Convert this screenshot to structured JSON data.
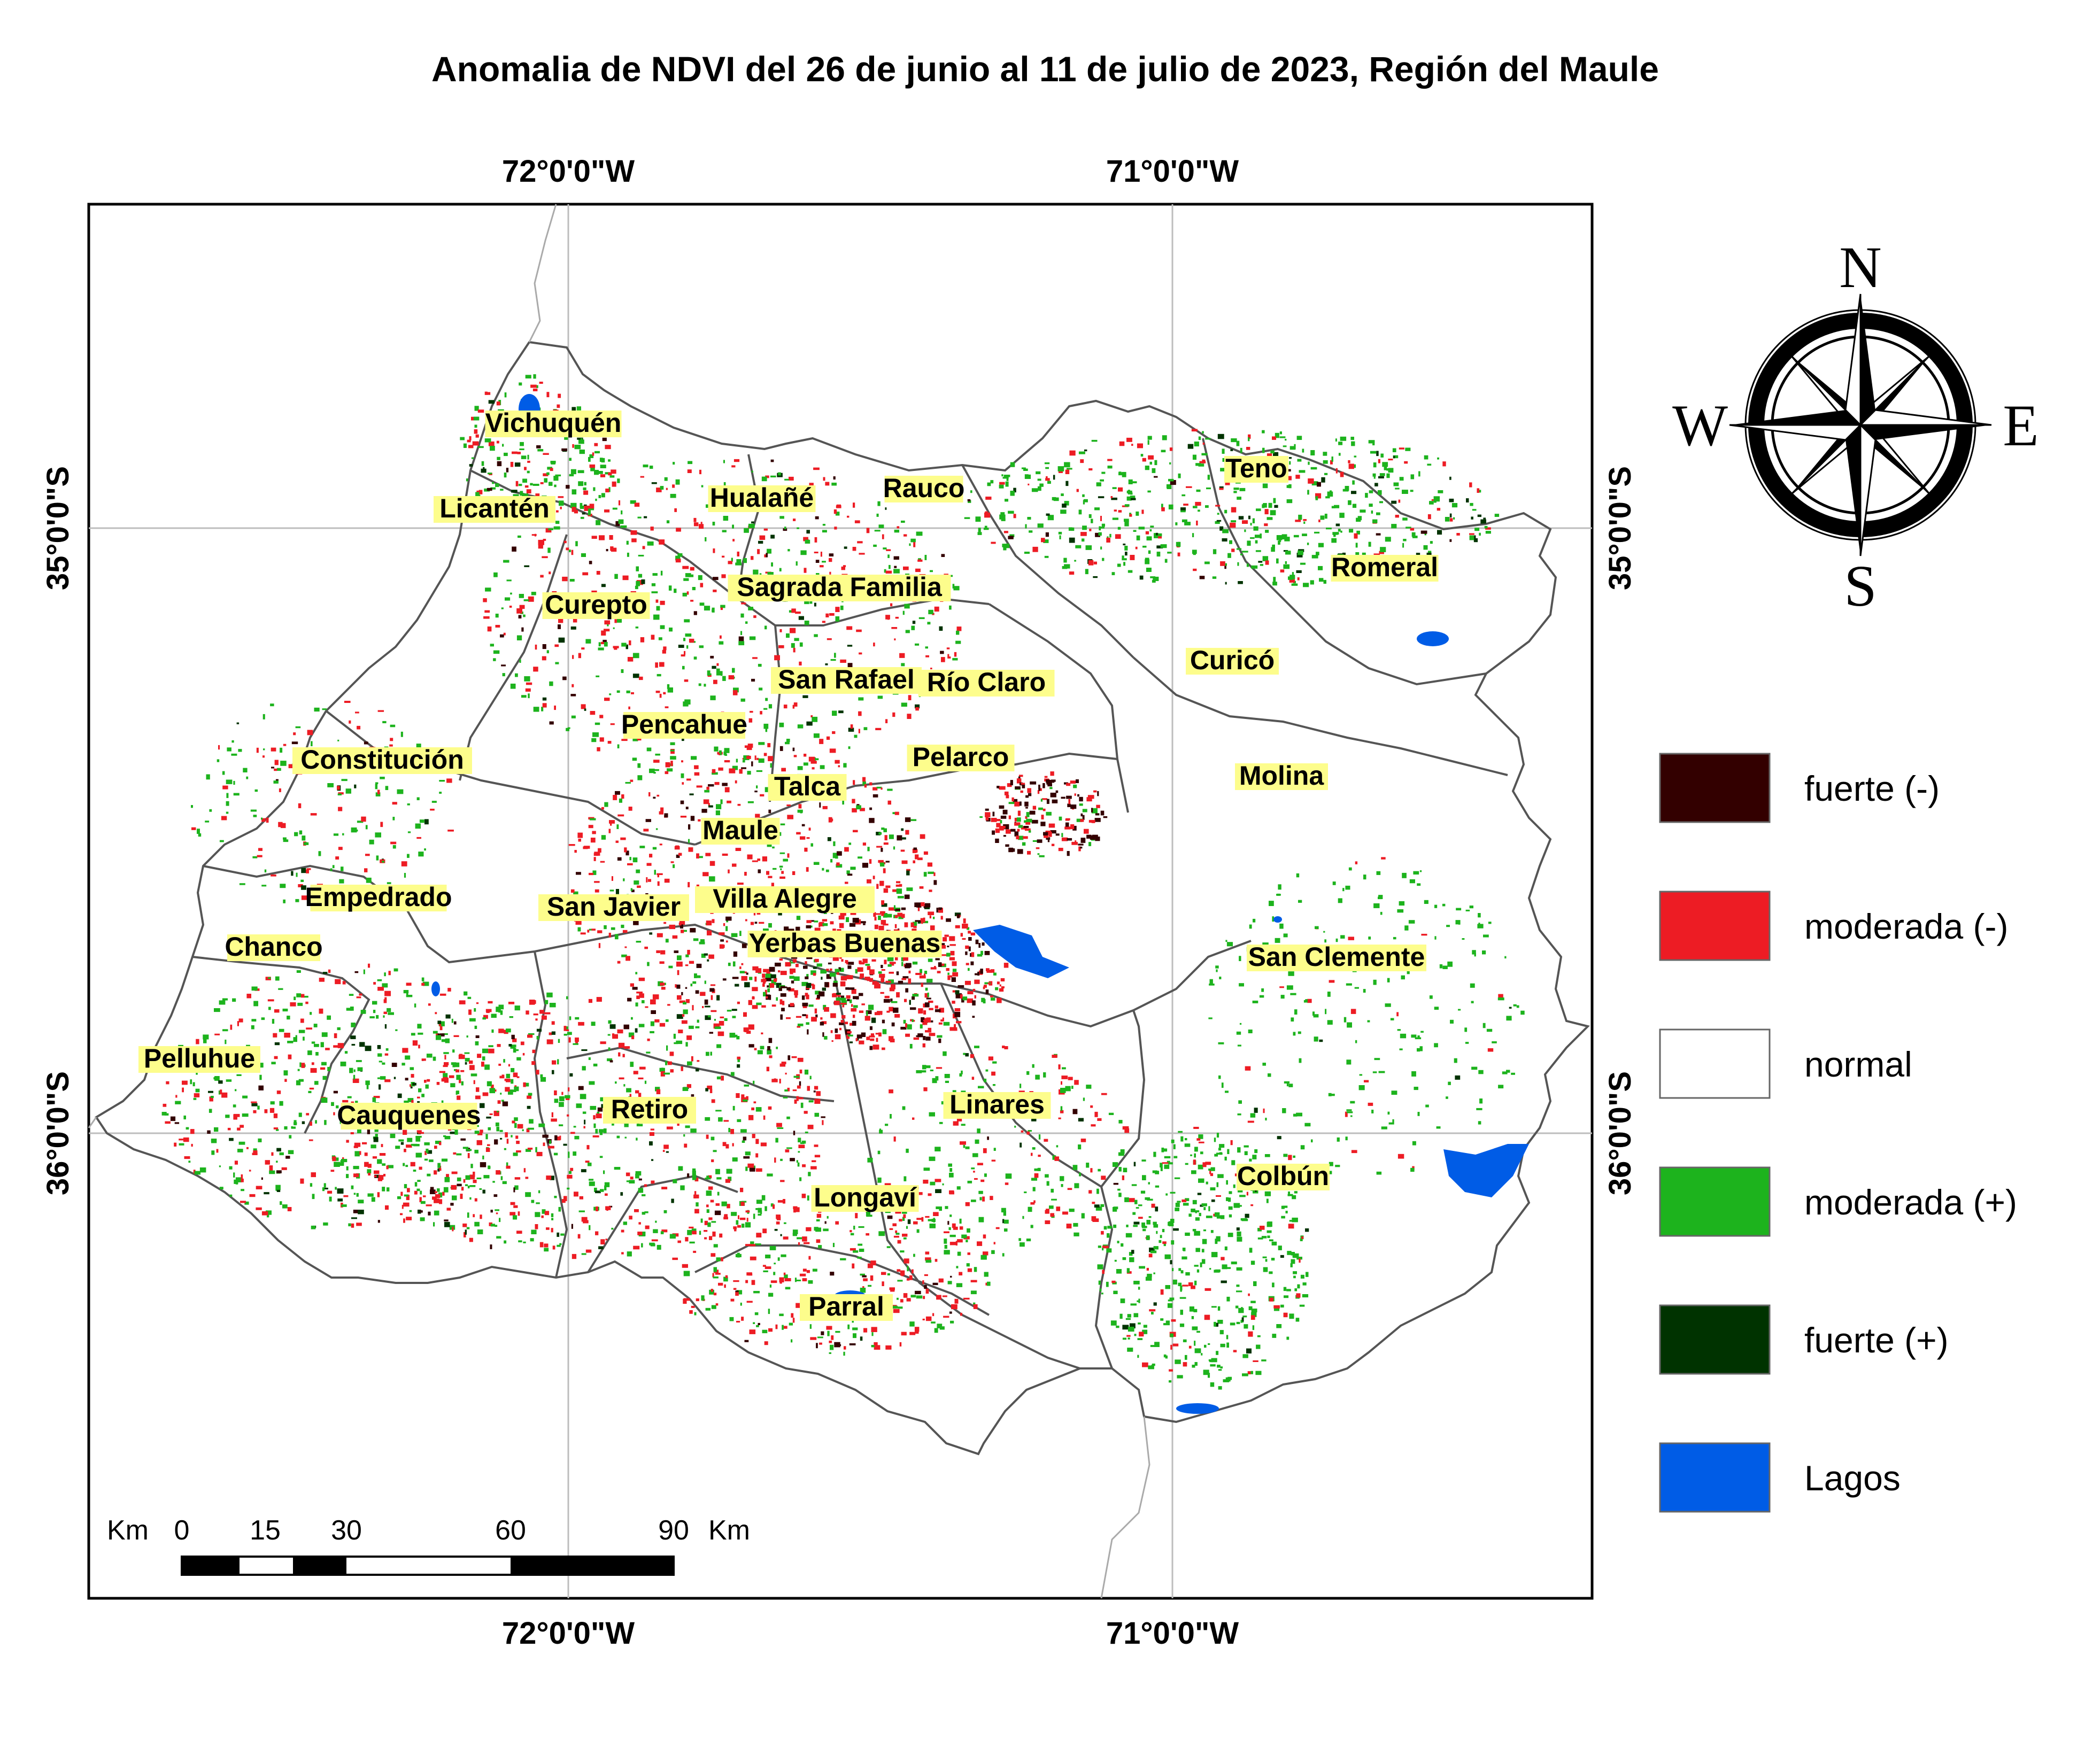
{
  "title": "Anomalia de NDVI del 26 de junio al 11 de julio de 2023, Región del Maule",
  "longitude_labels": [
    "72°0'0\"W",
    "71°0'0\"W"
  ],
  "latitude_labels": [
    "35°0'0\"S",
    "36°0'0\"S"
  ],
  "compass": {
    "n": "N",
    "s": "S",
    "e": "E",
    "w": "W",
    "icon": "compass-rose-icon"
  },
  "places": [
    {
      "name": "Vichuquén"
    },
    {
      "name": "Licantén"
    },
    {
      "name": "Hualañé"
    },
    {
      "name": "Rauco"
    },
    {
      "name": "Teno"
    },
    {
      "name": "Romeral"
    },
    {
      "name": "Curepto"
    },
    {
      "name": "Sagrada Familia"
    },
    {
      "name": "Curicó"
    },
    {
      "name": "San Rafael"
    },
    {
      "name": "Río Claro"
    },
    {
      "name": "Pencahue"
    },
    {
      "name": "Constitución"
    },
    {
      "name": "Pelarco"
    },
    {
      "name": "Molina"
    },
    {
      "name": "Talca"
    },
    {
      "name": "Maule"
    },
    {
      "name": "Empedrado"
    },
    {
      "name": "San Javier"
    },
    {
      "name": "Villa Alegre"
    },
    {
      "name": "Chanco"
    },
    {
      "name": "Yerbas Buenas"
    },
    {
      "name": "San Clemente"
    },
    {
      "name": "Pelluhue"
    },
    {
      "name": "Cauquenes"
    },
    {
      "name": "Retiro"
    },
    {
      "name": "Linares"
    },
    {
      "name": "Colbún"
    },
    {
      "name": "Longaví"
    },
    {
      "name": "Parral"
    }
  ],
  "legend": [
    {
      "label": "fuerte (-)",
      "color": "#330000"
    },
    {
      "label": "moderada (-)",
      "color": "#ed1c24"
    },
    {
      "label": "normal",
      "color": "#ffffff"
    },
    {
      "label": "moderada (+)",
      "color": "#1db31d"
    },
    {
      "label": "fuerte (+)",
      "color": "#003300"
    },
    {
      "label": "Lagos",
      "color": "#005ce6"
    }
  ],
  "scale_bar": {
    "unit_left": "Km",
    "ticks": [
      "0",
      "15",
      "30",
      "60",
      "90"
    ],
    "unit_right": "Km"
  }
}
